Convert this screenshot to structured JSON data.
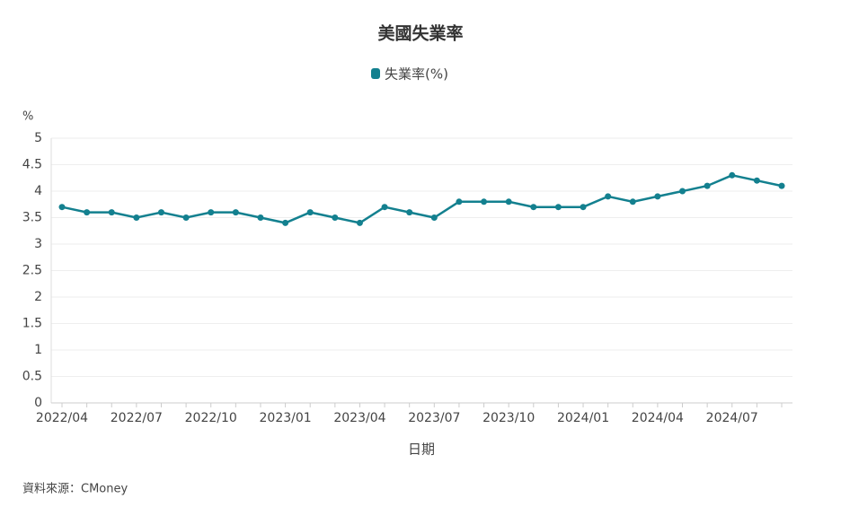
{
  "chart_data": {
    "type": "line",
    "title": "美國失業率",
    "y_unit": "%",
    "x_label": "日期",
    "source": "資料來源：CMoney",
    "categories": [
      "2022/04",
      null,
      null,
      "2022/07",
      null,
      null,
      "2022/10",
      null,
      null,
      "2023/01",
      null,
      null,
      "2023/04",
      null,
      null,
      "2023/07",
      null,
      null,
      "2023/10",
      null,
      null,
      "2024/01",
      null,
      null,
      "2024/04",
      null,
      null,
      "2024/07",
      null,
      null
    ],
    "series": [
      {
        "name": "失業率(%)",
        "color": "#13808f",
        "values": [
          3.7,
          3.6,
          3.6,
          3.5,
          3.6,
          3.5,
          3.6,
          3.6,
          3.5,
          3.4,
          3.6,
          3.5,
          3.4,
          3.7,
          3.6,
          3.5,
          3.8,
          3.8,
          3.8,
          3.7,
          3.7,
          3.7,
          3.9,
          3.8,
          3.9,
          4.0,
          4.1,
          4.3,
          4.2,
          4.1
        ]
      }
    ],
    "ylim": [
      0,
      5
    ],
    "yticks": [
      0,
      0.5,
      1,
      1.5,
      2,
      2.5,
      3,
      3.5,
      4,
      4.5,
      5
    ],
    "grid": true,
    "legend": "top"
  }
}
